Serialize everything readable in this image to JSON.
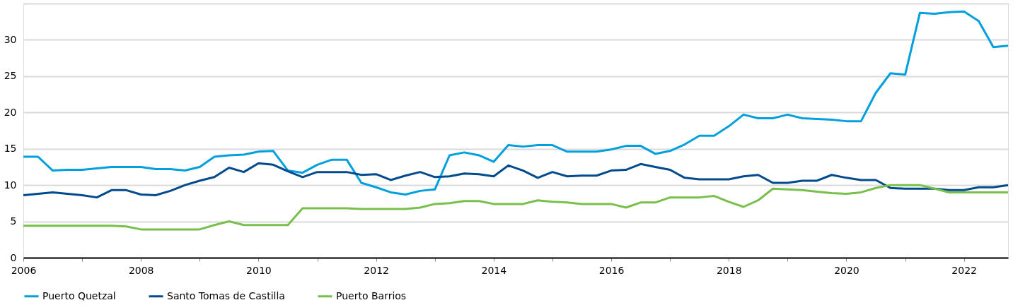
{
  "chart_data": {
    "type": "line",
    "x": [
      2006,
      2006.25,
      2006.5,
      2006.75,
      2007,
      2007.25,
      2007.5,
      2007.75,
      2008,
      2008.25,
      2008.5,
      2008.75,
      2009,
      2009.25,
      2009.5,
      2009.75,
      2010,
      2010.25,
      2010.5,
      2010.75,
      2011,
      2011.25,
      2011.5,
      2011.75,
      2012,
      2012.25,
      2012.5,
      2012.75,
      2013,
      2013.25,
      2013.5,
      2013.75,
      2014,
      2014.25,
      2014.5,
      2014.75,
      2015,
      2015.25,
      2015.5,
      2015.75,
      2016,
      2016.25,
      2016.5,
      2016.75,
      2017,
      2017.25,
      2017.5,
      2017.75,
      2018,
      2018.25,
      2018.5,
      2018.75,
      2019,
      2019.25,
      2019.5,
      2019.75,
      2020,
      2020.25,
      2020.5,
      2020.75,
      2021,
      2021.25,
      2021.5,
      2021.75,
      2022,
      2022.25,
      2022.5,
      2022.75
    ],
    "series": [
      {
        "name": "Puerto Quetzal",
        "color": "#00a0df",
        "values": [
          13.9,
          13.9,
          12.0,
          12.1,
          12.1,
          12.3,
          12.5,
          12.5,
          12.5,
          12.2,
          12.2,
          12.0,
          12.5,
          13.9,
          14.1,
          14.2,
          14.6,
          14.7,
          12.0,
          11.7,
          12.8,
          13.5,
          13.5,
          10.3,
          9.7,
          9.0,
          8.7,
          9.2,
          9.4,
          14.1,
          14.5,
          14.1,
          13.2,
          15.5,
          15.3,
          15.5,
          15.5,
          14.6,
          14.6,
          14.6,
          14.9,
          15.4,
          15.4,
          14.3,
          14.7,
          15.6,
          16.8,
          16.8,
          18.1,
          19.7,
          19.2,
          19.2,
          19.7,
          19.2,
          19.1,
          19.0,
          18.8,
          18.8,
          22.7,
          25.4,
          25.2,
          33.7,
          33.6,
          33.8,
          33.9,
          32.6,
          29.0,
          29.2
        ]
      },
      {
        "name": "Santo Tomas de Castilla",
        "color": "#004b8d",
        "values": [
          8.6,
          8.8,
          9.0,
          8.8,
          8.6,
          8.3,
          9.3,
          9.3,
          8.7,
          8.6,
          9.2,
          10.0,
          10.6,
          11.1,
          12.4,
          11.8,
          13.0,
          12.8,
          11.9,
          11.1,
          11.8,
          11.8,
          11.8,
          11.4,
          11.5,
          10.7,
          11.3,
          11.8,
          11.1,
          11.2,
          11.6,
          11.5,
          11.2,
          12.7,
          12.0,
          11.0,
          11.8,
          11.2,
          11.3,
          11.3,
          12.0,
          12.1,
          12.9,
          12.5,
          12.1,
          11.0,
          10.8,
          10.8,
          10.8,
          11.2,
          11.4,
          10.3,
          10.3,
          10.6,
          10.6,
          11.4,
          11.0,
          10.7,
          10.7,
          9.6,
          9.5,
          9.5,
          9.5,
          9.3,
          9.3,
          9.7,
          9.7,
          10.0
        ]
      },
      {
        "name": "Puerto Barrios",
        "color": "#78c04b",
        "values": [
          4.4,
          4.4,
          4.4,
          4.4,
          4.4,
          4.4,
          4.4,
          4.3,
          3.9,
          3.9,
          3.9,
          3.9,
          3.9,
          4.5,
          5.0,
          4.5,
          4.5,
          4.5,
          4.5,
          6.8,
          6.8,
          6.8,
          6.8,
          6.7,
          6.7,
          6.7,
          6.7,
          6.9,
          7.4,
          7.5,
          7.8,
          7.8,
          7.4,
          7.4,
          7.4,
          7.9,
          7.7,
          7.6,
          7.4,
          7.4,
          7.4,
          6.9,
          7.6,
          7.6,
          8.3,
          8.3,
          8.3,
          8.5,
          7.7,
          7.0,
          7.9,
          9.5,
          9.4,
          9.3,
          9.1,
          8.9,
          8.8,
          9.0,
          9.6,
          10.0,
          10.0,
          10.0,
          9.5,
          9.0,
          9.0,
          9.0,
          9.0,
          9.0
        ]
      }
    ],
    "xlim": [
      2006,
      2022.75
    ],
    "xticks": [
      2006,
      {
        "value": 2007,
        "label": null
      },
      2008,
      {
        "value": 2009,
        "label": null
      },
      2010,
      {
        "value": 2011,
        "label": null
      },
      2012,
      {
        "value": 2013,
        "label": null
      },
      2014,
      {
        "value": 2015,
        "label": null
      },
      2016,
      {
        "value": 2017,
        "label": null
      },
      2018,
      {
        "value": 2019,
        "label": null
      },
      2020,
      {
        "value": 2021,
        "label": null
      },
      2022
    ],
    "ylim": [
      0,
      35
    ],
    "yticks": [
      0,
      5,
      10,
      15,
      20,
      25,
      30,
      {
        "value": 35,
        "label": null
      }
    ],
    "grid": "y",
    "legend": "bottom",
    "marker": "none",
    "line_style": "solid"
  }
}
